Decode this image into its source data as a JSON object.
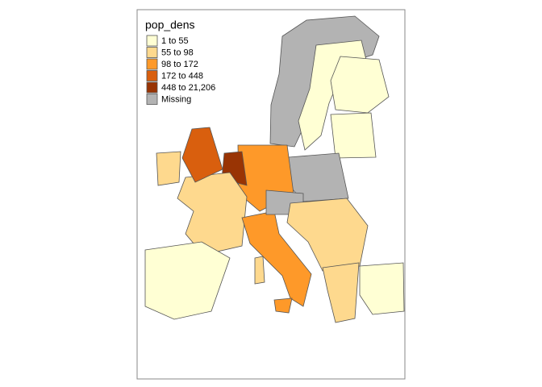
{
  "legend": {
    "title": "pop_dens",
    "items": [
      {
        "label": "1 to 55",
        "color": "#ffffd4"
      },
      {
        "label": "55 to 98",
        "color": "#fed98e"
      },
      {
        "label": "98 to 172",
        "color": "#fe9929"
      },
      {
        "label": "172 to 448",
        "color": "#d95f0e"
      },
      {
        "label": "448 to 21,206",
        "color": "#993404"
      },
      {
        "label": "Missing",
        "color": "#b3b3b3"
      }
    ]
  }
}
